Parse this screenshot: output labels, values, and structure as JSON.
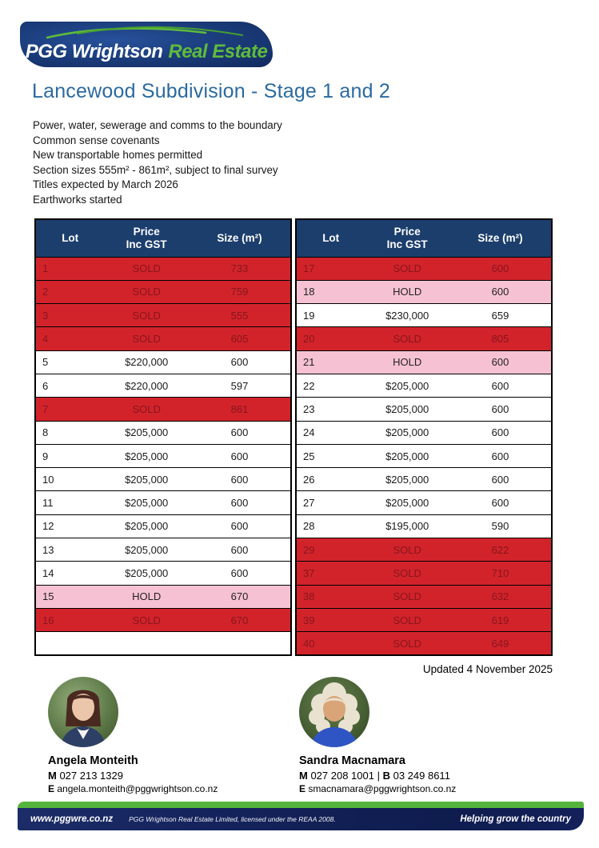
{
  "logo": {
    "brand_main": "PGG Wrightson",
    "brand_sub": "Real Estate"
  },
  "page_title": "Lancewood Subdivision - Stage 1 and 2",
  "features": [
    "Power, water, sewerage and comms to the boundary",
    "Common sense covenants",
    "New transportable homes permitted",
    "Section sizes 555m² - 861m², subject to final survey",
    "Titles expected by March 2026",
    "Earthworks started"
  ],
  "tables": {
    "headers": {
      "lot": "Lot",
      "price_line1": "Price",
      "price_line2": "Inc GST",
      "size": "Size (m²)"
    },
    "left_rows": [
      {
        "lot": "1",
        "price": "SOLD",
        "size": "733",
        "status": "sold"
      },
      {
        "lot": "2",
        "price": "SOLD",
        "size": "759",
        "status": "sold"
      },
      {
        "lot": "3",
        "price": "SOLD",
        "size": "555",
        "status": "sold"
      },
      {
        "lot": "4",
        "price": "SOLD",
        "size": "605",
        "status": "sold"
      },
      {
        "lot": "5",
        "price": "$220,000",
        "size": "600",
        "status": "avail"
      },
      {
        "lot": "6",
        "price": "$220,000",
        "size": "597",
        "status": "avail"
      },
      {
        "lot": "7",
        "price": "SOLD",
        "size": "861",
        "status": "sold"
      },
      {
        "lot": "8",
        "price": "$205,000",
        "size": "600",
        "status": "avail"
      },
      {
        "lot": "9",
        "price": "$205,000",
        "size": "600",
        "status": "avail"
      },
      {
        "lot": "10",
        "price": "$205,000",
        "size": "600",
        "status": "avail"
      },
      {
        "lot": "11",
        "price": "$205,000",
        "size": "600",
        "status": "avail"
      },
      {
        "lot": "12",
        "price": "$205,000",
        "size": "600",
        "status": "avail"
      },
      {
        "lot": "13",
        "price": "$205,000",
        "size": "600",
        "status": "avail"
      },
      {
        "lot": "14",
        "price": "$205,000",
        "size": "600",
        "status": "avail"
      },
      {
        "lot": "15",
        "price": "HOLD",
        "size": "670",
        "status": "hold"
      },
      {
        "lot": "16",
        "price": "SOLD",
        "size": "670",
        "status": "sold"
      },
      {
        "lot": "",
        "price": "",
        "size": "",
        "status": "empty"
      }
    ],
    "right_rows": [
      {
        "lot": "17",
        "price": "SOLD",
        "size": "600",
        "status": "sold"
      },
      {
        "lot": "18",
        "price": "HOLD",
        "size": "600",
        "status": "hold"
      },
      {
        "lot": "19",
        "price": "$230,000",
        "size": "659",
        "status": "avail"
      },
      {
        "lot": "20",
        "price": "SOLD",
        "size": "805",
        "status": "sold"
      },
      {
        "lot": "21",
        "price": "HOLD",
        "size": "600",
        "status": "hold"
      },
      {
        "lot": "22",
        "price": "$205,000",
        "size": "600",
        "status": "avail"
      },
      {
        "lot": "23",
        "price": "$205,000",
        "size": "600",
        "status": "avail"
      },
      {
        "lot": "24",
        "price": "$205,000",
        "size": "600",
        "status": "avail"
      },
      {
        "lot": "25",
        "price": "$205,000",
        "size": "600",
        "status": "avail"
      },
      {
        "lot": "26",
        "price": "$205,000",
        "size": "600",
        "status": "avail"
      },
      {
        "lot": "27",
        "price": "$205,000",
        "size": "600",
        "status": "avail"
      },
      {
        "lot": "28",
        "price": "$195,000",
        "size": "590",
        "status": "avail"
      },
      {
        "lot": "29",
        "price": "SOLD",
        "size": "622",
        "status": "sold"
      },
      {
        "lot": "37",
        "price": "SOLD",
        "size": "710",
        "status": "sold"
      },
      {
        "lot": "38",
        "price": "SOLD",
        "size": "632",
        "status": "sold"
      },
      {
        "lot": "39",
        "price": "SOLD",
        "size": "619",
        "status": "sold"
      },
      {
        "lot": "40",
        "price": "SOLD",
        "size": "649",
        "status": "sold"
      }
    ]
  },
  "updated": "Updated 4 November 2025",
  "agents": [
    {
      "name": "Angela Monteith",
      "mobile_label": "M",
      "mobile": " 027 213 1329",
      "email_label": "E",
      "email": " angela.monteith@pggwrightson.co.nz"
    },
    {
      "name": "Sandra Macnamara",
      "mobile_label": "M",
      "mobile": " 027 208 1001 ",
      "separator": "| ",
      "business_label": "B",
      "business": " 03 249 8611",
      "email_label": "E",
      "email": " smacnamara@pggwrightson.co.nz"
    }
  ],
  "footer": {
    "website": "www.pggwre.co.nz",
    "license": "PGG Wrightson Real Estate Limited, licensed under the REAA 2008.",
    "tagline": "Helping grow the country"
  },
  "colors": {
    "header_navy": "#1c3e6d",
    "sold_red": "#d2232b",
    "sold_text": "#87161b",
    "hold_pink": "#f6c2d3",
    "title_blue": "#2b6aa0",
    "brand_green": "#5fba3d",
    "footer_navy": "#13205a",
    "footer_green": "#55b43b"
  }
}
